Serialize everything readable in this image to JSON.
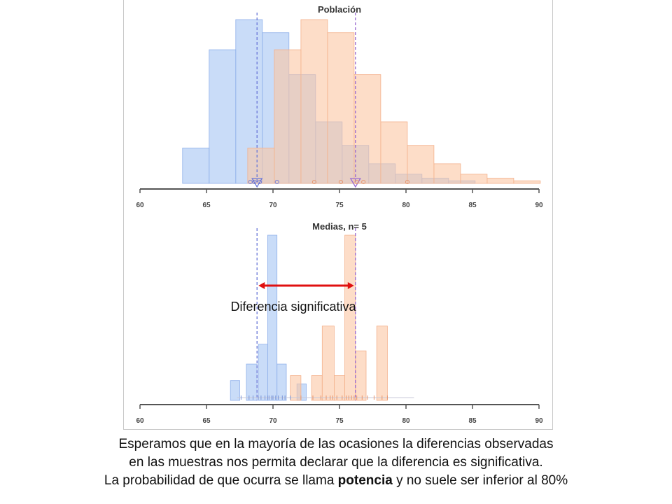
{
  "chart_data": [
    {
      "type": "bar",
      "title": "Población",
      "xlim": [
        60,
        90
      ],
      "xticks": [
        60,
        65,
        70,
        75,
        80,
        85,
        90
      ],
      "colors": {
        "group_a": "#a8c6f4",
        "group_b": "#fbc6a4",
        "mean_a": "#6a78d8",
        "mean_b": "#9a6ad0"
      },
      "series": [
        {
          "color": "#a8c6f4",
          "bins": [
            {
              "x0": 63.2,
              "x1": 65.2,
              "value": 0.27
            },
            {
              "x0": 65.2,
              "x1": 67.2,
              "value": 1.02
            },
            {
              "x0": 67.2,
              "x1": 69.2,
              "value": 1.25
            },
            {
              "x0": 69.2,
              "x1": 71.2,
              "value": 1.15
            },
            {
              "x0": 71.2,
              "x1": 73.2,
              "value": 0.83
            },
            {
              "x0": 73.2,
              "x1": 75.2,
              "value": 0.47
            },
            {
              "x0": 75.2,
              "x1": 77.2,
              "value": 0.29
            },
            {
              "x0": 77.2,
              "x1": 79.2,
              "value": 0.15
            },
            {
              "x0": 79.2,
              "x1": 81.2,
              "value": 0.07
            },
            {
              "x0": 81.2,
              "x1": 83.2,
              "value": 0.04
            },
            {
              "x0": 83.2,
              "x1": 85.2,
              "value": 0.02
            }
          ],
          "mean": 68.8
        },
        {
          "color": "#fbc6a4",
          "bins": [
            {
              "x0": 68.1,
              "x1": 70.1,
              "value": 0.27
            },
            {
              "x0": 70.1,
              "x1": 72.1,
              "value": 1.02
            },
            {
              "x0": 72.1,
              "x1": 74.1,
              "value": 1.25
            },
            {
              "x0": 74.1,
              "x1": 76.1,
              "value": 1.15
            },
            {
              "x0": 76.1,
              "x1": 78.1,
              "value": 0.83
            },
            {
              "x0": 78.1,
              "x1": 80.1,
              "value": 0.47
            },
            {
              "x0": 80.1,
              "x1": 82.1,
              "value": 0.29
            },
            {
              "x0": 82.1,
              "x1": 84.1,
              "value": 0.15
            },
            {
              "x0": 84.1,
              "x1": 86.1,
              "value": 0.07
            },
            {
              "x0": 86.1,
              "x1": 88.1,
              "value": 0.04
            },
            {
              "x0": 88.1,
              "x1": 90.1,
              "value": 0.02
            }
          ],
          "mean": 76.2
        }
      ],
      "sample_points": [
        {
          "x": 68.3,
          "series": 0
        },
        {
          "x": 68.6,
          "series": 0
        },
        {
          "x": 69.0,
          "series": 0
        },
        {
          "x": 70.3,
          "series": 0
        },
        {
          "x": 73.1,
          "series": 1
        },
        {
          "x": 75.1,
          "series": 1
        },
        {
          "x": 76.3,
          "series": 1
        },
        {
          "x": 76.8,
          "series": 1
        },
        {
          "x": 80.1,
          "series": 1
        }
      ],
      "grid": false
    },
    {
      "type": "bar",
      "title": "Medias, n= 5",
      "xlim": [
        60,
        90
      ],
      "xticks": [
        60,
        65,
        70,
        75,
        80,
        85,
        90
      ],
      "colors": {
        "group_a": "#a8c6f4",
        "group_b": "#fbc6a4",
        "mean_a": "#6a78d8",
        "mean_b": "#9a6ad0",
        "arrow": "#e01010"
      },
      "series": [
        {
          "color": "#a8c6f4",
          "bins": [
            {
              "x0": 66.8,
              "x1": 67.5,
              "value": 0.12
            },
            {
              "x0": 68.0,
              "x1": 68.8,
              "value": 0.22
            },
            {
              "x0": 68.9,
              "x1": 69.6,
              "value": 0.34
            },
            {
              "x0": 69.6,
              "x1": 70.3,
              "value": 1.0
            },
            {
              "x0": 70.3,
              "x1": 71.0,
              "value": 0.22
            },
            {
              "x0": 71.8,
              "x1": 72.5,
              "value": 0.1
            }
          ],
          "mean": 68.8
        },
        {
          "color": "#fbc6a4",
          "bins": [
            {
              "x0": 71.3,
              "x1": 72.1,
              "value": 0.15
            },
            {
              "x0": 72.9,
              "x1": 73.7,
              "value": 0.15
            },
            {
              "x0": 73.7,
              "x1": 74.6,
              "value": 0.45
            },
            {
              "x0": 74.6,
              "x1": 75.4,
              "value": 0.15
            },
            {
              "x0": 75.4,
              "x1": 76.2,
              "value": 1.0
            },
            {
              "x0": 76.2,
              "x1": 77.0,
              "value": 0.3
            },
            {
              "x0": 77.8,
              "x1": 78.6,
              "value": 0.45
            }
          ],
          "mean": 76.2
        }
      ],
      "rug": {
        "a": [
          67.6,
          68.2,
          68.5,
          68.9,
          69.1,
          69.4,
          69.6,
          69.7,
          69.9,
          70.0,
          70.2,
          70.4,
          70.7,
          70.9,
          71.3
        ],
        "b": [
          72.1,
          73.0,
          73.6,
          74.0,
          74.3,
          74.5,
          74.8,
          75.2,
          75.5,
          75.7,
          75.9,
          76.1,
          76.3,
          76.7,
          77.1,
          77.6,
          78.2,
          78.6
        ]
      },
      "annotations": [
        {
          "text": "Diferencia significativa",
          "arrow_from": 68.8,
          "arrow_to": 76.2
        }
      ],
      "grid": false
    }
  ],
  "caption": {
    "line1": "Esperamos que en la mayoría de las ocasiones la diferencias observadas",
    "line2": "en las muestras nos permita declarar que la diferencia es significativa.",
    "line3_before": "La probabilidad  de que ocurra se llama ",
    "line3_bold": "potencia",
    "line3_after": " y no suele ser inferior al 80%"
  }
}
